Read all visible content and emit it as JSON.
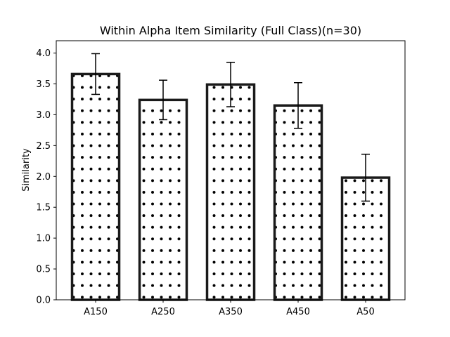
{
  "chart_data": {
    "type": "bar",
    "title": "Within Alpha Item Similarity (Full Class)(n=30)",
    "xlabel": "",
    "ylabel": "Similarity",
    "categories": [
      "A150",
      "A250",
      "A350",
      "A450",
      "A50"
    ],
    "values": [
      3.66,
      3.24,
      3.49,
      3.15,
      1.98
    ],
    "errors": [
      0.33,
      0.32,
      0.36,
      0.37,
      0.38
    ],
    "ylim": [
      0,
      4.2
    ],
    "yticks": [
      "0.0",
      "0.5",
      "1.0",
      "1.5",
      "2.0",
      "2.5",
      "3.0",
      "3.5",
      "4.0"
    ],
    "grid": false,
    "legend": "none",
    "bar_fill": "#ffffff",
    "bar_edge": "#1a1a1a",
    "hatch": "dots",
    "error_color": "#000000"
  }
}
